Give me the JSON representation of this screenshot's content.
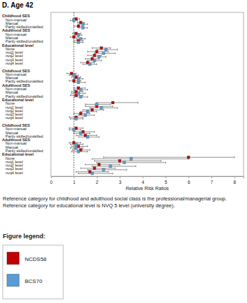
{
  "chart_data": {
    "type": "forest",
    "title": "D. Age 42",
    "x_label": "Relative Risk Ratios",
    "categories": [
      "Childhood SES",
      "Non-manual",
      "Manual",
      "Partly skilled/unskilled",
      "Adulthood SES",
      "Non-manual",
      "Manual",
      "Partly skilled/unskilled",
      "Educational level",
      "None",
      "nvq1 level",
      "nvq2 level",
      "nvq3 level",
      "nvq4 level",
      "Childhood SES",
      "Non-manual",
      "Manual",
      "Partly skilled/unskilled",
      "Adulthood SES",
      "Non-manual",
      "Manual",
      "Partly skilled/unskilled",
      "Educational level",
      "None",
      "nvq1 level",
      "nvq2 level",
      "nvq3 level",
      "nvq4 level",
      "Childhood SES",
      "Non-manual",
      "Manual",
      "Partly skilled/unskilled",
      "Adulthood SES",
      "Non-manual",
      "Manual",
      "Partly skilled/unskilled",
      "Educational level",
      "None",
      "nvq1 level",
      "nvq2 level",
      "nvq3 level",
      "nvq4 level"
    ],
    "series": [
      {
        "name": "NCDS58",
        "color": "#c00000",
        "marker": "square",
        "values": [
          null,
          1.1,
          1.3,
          1.2,
          null,
          1.1,
          1.0,
          1.2,
          null,
          2.2,
          2.0,
          1.9,
          1.8,
          1.6,
          null,
          0.9,
          1.1,
          1.0,
          null,
          1.2,
          1.1,
          1.1,
          null,
          2.7,
          2.0,
          1.8,
          1.3,
          1.1,
          null,
          1.1,
          1.4,
          1.5,
          null,
          1.0,
          1.2,
          1.3,
          null,
          6.0,
          3.0,
          2.1,
          1.9,
          1.7
        ],
        "lower": [
          null,
          0.95,
          1.15,
          1.0,
          null,
          0.95,
          0.85,
          1.0,
          null,
          1.8,
          1.6,
          1.6,
          1.5,
          1.3,
          null,
          0.7,
          0.9,
          0.8,
          null,
          1.0,
          0.9,
          0.85,
          null,
          2.0,
          1.5,
          1.4,
          1.0,
          0.8,
          null,
          0.8,
          1.0,
          1.1,
          null,
          0.8,
          0.9,
          0.95,
          null,
          2.3,
          1.9,
          1.5,
          1.3,
          1.1
        ],
        "upper": [
          null,
          1.25,
          1.45,
          1.4,
          null,
          1.3,
          1.2,
          1.4,
          null,
          2.6,
          2.5,
          2.2,
          2.1,
          1.9,
          null,
          1.1,
          1.3,
          1.3,
          null,
          1.5,
          1.4,
          1.4,
          null,
          3.8,
          2.7,
          2.3,
          1.7,
          1.4,
          null,
          1.4,
          1.9,
          2.0,
          null,
          1.3,
          1.6,
          1.7,
          null,
          8.0,
          4.8,
          3.0,
          2.8,
          2.5
        ]
      },
      {
        "name": "BCS70",
        "color": "#5b9bd5",
        "marker": "square",
        "values": [
          null,
          1.0,
          1.4,
          1.4,
          null,
          1.2,
          1.3,
          1.2,
          null,
          2.4,
          2.3,
          2.1,
          1.9,
          1.7,
          null,
          1.0,
          1.2,
          1.2,
          null,
          1.3,
          1.2,
          1.3,
          null,
          2.0,
          2.2,
          1.6,
          1.5,
          1.1,
          null,
          1.0,
          1.3,
          1.6,
          null,
          1.1,
          1.1,
          1.2,
          null,
          3.5,
          3.2,
          2.6,
          2.3,
          1.8
        ],
        "lower": [
          null,
          0.85,
          1.2,
          1.2,
          null,
          1.05,
          1.1,
          1.0,
          null,
          2.0,
          1.9,
          1.8,
          1.6,
          1.4,
          null,
          0.8,
          1.0,
          1.0,
          null,
          1.0,
          0.9,
          1.0,
          null,
          1.5,
          1.7,
          1.3,
          1.2,
          0.85,
          null,
          0.8,
          1.0,
          1.2,
          null,
          0.85,
          0.85,
          0.9,
          null,
          1.8,
          2.0,
          1.8,
          1.6,
          1.2
        ],
        "upper": [
          null,
          1.15,
          1.6,
          1.6,
          null,
          1.35,
          1.5,
          1.4,
          null,
          2.9,
          2.8,
          2.4,
          2.2,
          2.0,
          null,
          1.2,
          1.4,
          1.5,
          null,
          1.6,
          1.5,
          1.6,
          null,
          2.6,
          2.9,
          2.0,
          1.9,
          1.4,
          null,
          1.3,
          1.7,
          2.1,
          null,
          1.4,
          1.4,
          1.6,
          null,
          6.0,
          5.0,
          3.7,
          3.3,
          2.7
        ]
      }
    ],
    "reference_line": 1,
    "xlim": [
      0,
      8.4
    ],
    "xticks": [
      0,
      1,
      2,
      3,
      4,
      5,
      6,
      7,
      8
    ],
    "grid": false,
    "orientation": "horizontal",
    "legend": "bottom",
    "legend_title": "Figure legend:",
    "note": "Reference category for childhood and adulthood social class is the professional/managerial group. Reference category for educational level is NVQ 5 level (university degree)."
  }
}
